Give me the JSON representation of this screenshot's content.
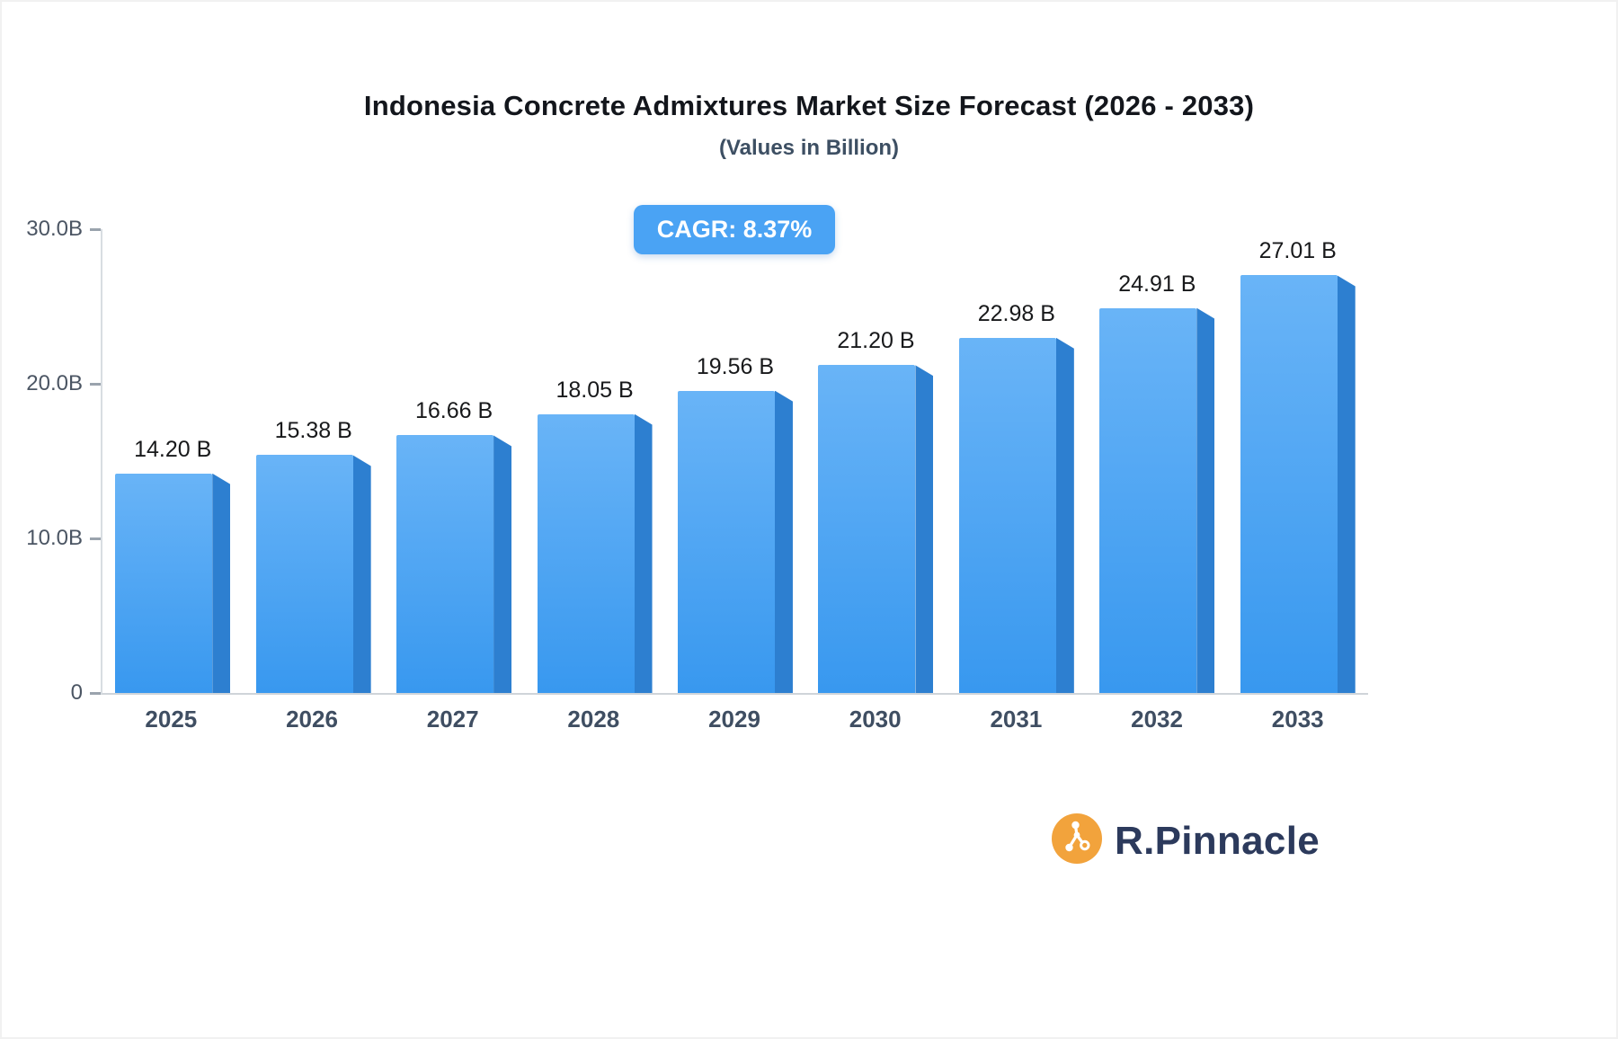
{
  "title": "Indonesia Concrete Admixtures Market Size Forecast (2026 - 2033)",
  "subtitle": "(Values in Billion)",
  "cagr_badge": "CAGR: 8.37%",
  "brand": {
    "name": "R.Pinnacle"
  },
  "colors": {
    "badge_bg": "#4aa3f4",
    "bar_top": "#69b4f7",
    "bar_bottom": "#3898ef",
    "bar_side": "#2d7fd0",
    "logo_orange": "#f2a33c",
    "brand_text": "#2c3a5c"
  },
  "chart_data": {
    "type": "bar",
    "title": "Indonesia Concrete Admixtures Market Size Forecast (2026 - 2033)",
    "subtitle": "(Values in Billion)",
    "annotation": "CAGR: 8.37%",
    "categories": [
      "2025",
      "2026",
      "2027",
      "2028",
      "2029",
      "2030",
      "2031",
      "2032",
      "2033"
    ],
    "values": [
      14.2,
      15.38,
      16.66,
      18.05,
      19.56,
      21.2,
      22.98,
      24.91,
      27.01
    ],
    "value_labels": [
      "14.20 B",
      "15.38 B",
      "16.66 B",
      "18.05 B",
      "19.56 B",
      "21.20 B",
      "22.98 B",
      "24.91 B",
      "27.01 B"
    ],
    "xlabel": "",
    "ylabel": "",
    "ylim": [
      0,
      30
    ],
    "yticks": [
      {
        "value": 0,
        "label": "0"
      },
      {
        "value": 10,
        "label": "10.0B"
      },
      {
        "value": 20,
        "label": "20.0B"
      },
      {
        "value": 30,
        "label": "30.0B"
      }
    ],
    "grid": false,
    "legend": false
  }
}
